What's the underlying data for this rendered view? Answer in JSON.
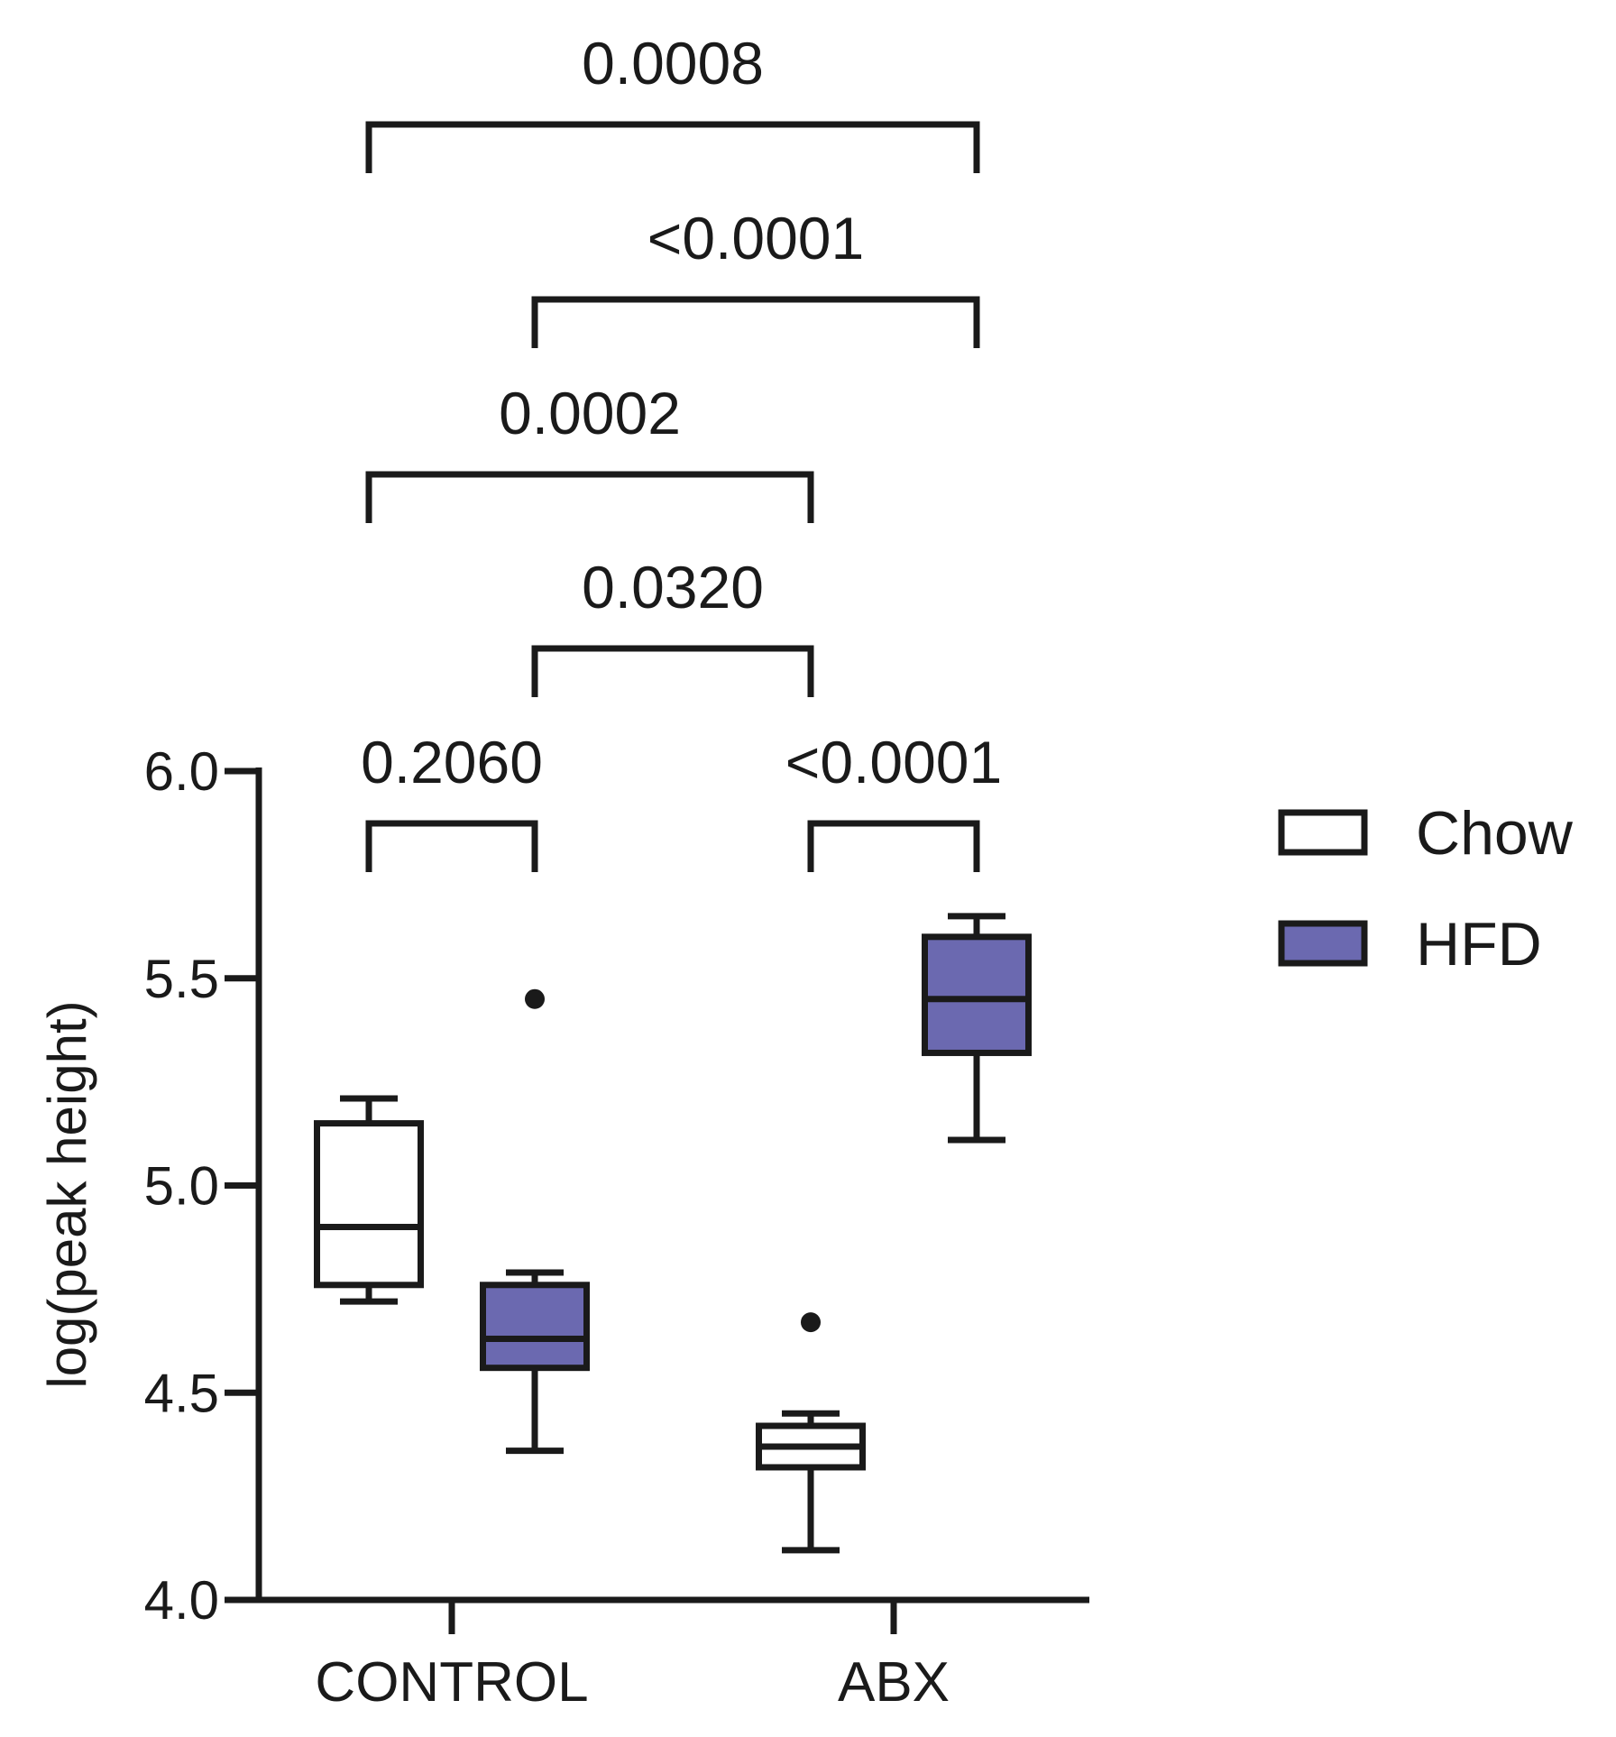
{
  "chart_data": {
    "type": "box",
    "title": "",
    "xlabel": "",
    "ylabel": "log(peak height)",
    "ylim": [
      4.0,
      6.0
    ],
    "yticks": [
      "4.0",
      "4.5",
      "5.0",
      "5.5",
      "6.0"
    ],
    "categories": [
      "CONTROL",
      "ABX"
    ],
    "colors": {
      "Chow": "#ffffff",
      "HFD": "#6b69b0",
      "stroke": "#1a1a1a"
    },
    "series": [
      {
        "name": "Chow",
        "color": "#ffffff",
        "boxes": [
          {
            "category": "CONTROL",
            "min": 4.72,
            "q1": 4.76,
            "median": 4.9,
            "q3": 5.15,
            "max": 5.21,
            "outliers": []
          },
          {
            "category": "ABX",
            "min": 4.12,
            "q1": 4.32,
            "median": 4.37,
            "q3": 4.42,
            "max": 4.45,
            "outliers": [
              4.67
            ]
          }
        ]
      },
      {
        "name": "HFD",
        "color": "#6b69b0",
        "boxes": [
          {
            "category": "CONTROL",
            "min": 4.36,
            "q1": 4.56,
            "median": 4.63,
            "q3": 4.76,
            "max": 4.79,
            "outliers": [
              5.45
            ]
          },
          {
            "category": "ABX",
            "min": 5.11,
            "q1": 5.32,
            "median": 5.45,
            "q3": 5.6,
            "max": 5.65,
            "outliers": []
          }
        ]
      }
    ],
    "comparisons": [
      {
        "from": "CONTROL Chow",
        "to": "CONTROL HFD",
        "label": "0.2060"
      },
      {
        "from": "ABX Chow",
        "to": "ABX HFD",
        "label": "<0.0001"
      },
      {
        "from": "CONTROL HFD",
        "to": "ABX Chow",
        "label": "0.0320"
      },
      {
        "from": "CONTROL Chow",
        "to": "ABX Chow",
        "label": "0.0002"
      },
      {
        "from": "CONTROL HFD",
        "to": "ABX HFD",
        "label": "<0.0001"
      },
      {
        "from": "CONTROL Chow",
        "to": "ABX HFD",
        "label": "0.0008"
      }
    ],
    "legend": {
      "position": "right",
      "items": [
        "Chow",
        "HFD"
      ]
    },
    "grid": false
  }
}
